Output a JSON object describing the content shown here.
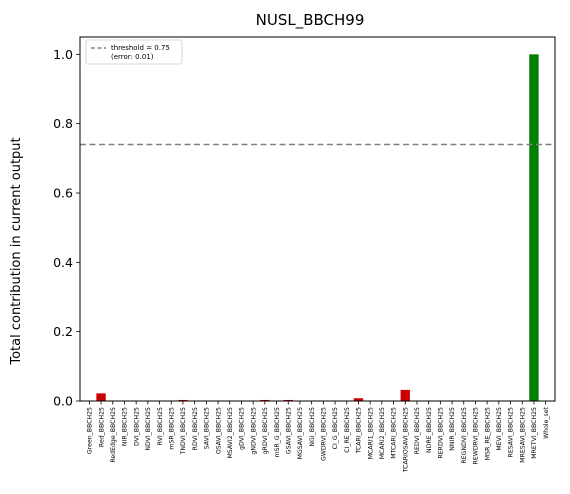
{
  "chart_data": {
    "type": "bar",
    "title": "NUSL_BBCH99",
    "ylabel": "Total contribution in current output",
    "xlabel": "",
    "ylim": [
      0,
      1.05
    ],
    "yticks": [
      0.0,
      0.2,
      0.4,
      0.6,
      0.8,
      1.0
    ],
    "ytick_labels": [
      "0.0",
      "0.2",
      "0.4",
      "0.6",
      "0.8",
      "1.0"
    ],
    "grid": false,
    "legend_position": "top-left",
    "legend": {
      "line1": "threshold = 0.75",
      "line2": "(error: 0.01)"
    },
    "threshold": 0.74,
    "colors": {
      "below": "#cc0000",
      "above": "#008000",
      "threshold": "#808080"
    },
    "categories": [
      "Green_BBCH25",
      "Red_BBCH25",
      "RedEdge_BBCH25",
      "NIR_BBCH25",
      "DVI_BBCH25",
      "NDVI_BBCH25",
      "RVI_BBCH25",
      "mSR_BBCH25",
      "TNDVI_BBCH25",
      "RDVI_BBCH25",
      "SAVI_BBCH25",
      "OSAVI_BBCH25",
      "MSAVI2_BBCH25",
      "gDVI_BBCH25",
      "gNDVI_BBCH25",
      "gRDVI_BBCH25",
      "mSR_G_BBCH25",
      "GSAVI_BBCH25",
      "MGSAVI_BBCH25",
      "NGI_BBCH25",
      "GWDRVI_BBCH25",
      "CI_G_BBCH25",
      "CI_RE_BBCH25",
      "TCARI_BBCH25",
      "MCARI1_BBCH25",
      "MCARI2_BBCH25",
      "MTCARI_BBCH25",
      "TCARIOSAVI_BBCH25",
      "REDVI_BBCH25",
      "NDRE_BBCH25",
      "RERDVI_BBCH25",
      "NNIR_BBCH25",
      "REGNDVI_BBCH25",
      "REWDRVI_BBCH25",
      "MSR_RE_BBCH25",
      "MEVI_BBCH25",
      "RESAVI_BBCH25",
      "MRESAVI_BBCH25",
      "MRETVI_BBCH25",
      "Whole_set"
    ],
    "values": [
      0,
      0.022,
      0,
      0,
      0,
      0,
      0,
      0,
      0.003,
      0,
      0,
      0,
      0,
      0,
      0,
      0.003,
      0,
      0.003,
      0,
      0,
      0,
      0,
      0,
      0.008,
      0,
      0,
      0,
      0.032,
      0,
      0,
      0,
      0,
      0,
      0,
      0,
      0,
      0,
      0,
      1.0,
      0
    ]
  }
}
